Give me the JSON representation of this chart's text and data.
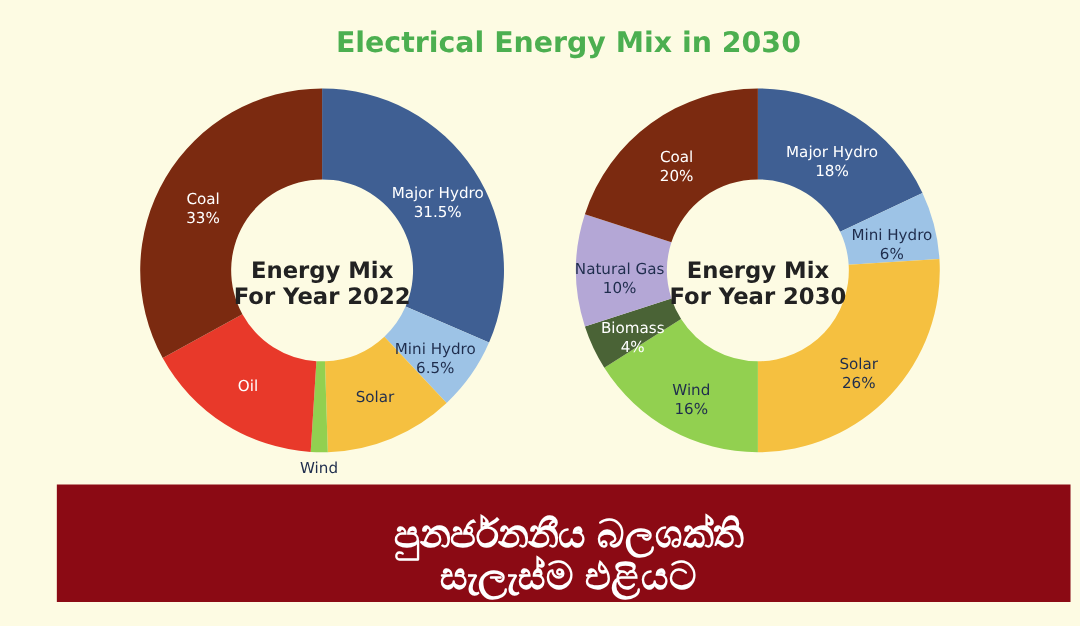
{
  "chart_data": [
    {
      "type": "donut",
      "title": "Energy Mix\nFor Year 2022",
      "categories": [
        "Major Hydro",
        "Mini Hydro",
        "Solar",
        "Wind",
        "Oil",
        "Coal"
      ],
      "values": [
        31.5,
        6.5,
        11.5,
        1.5,
        16,
        33
      ],
      "value_labels": [
        "31.5%",
        "6.5%",
        null,
        null,
        null,
        "33%"
      ],
      "colors": [
        "#3f5f93",
        "#9dc3e6",
        "#f5c040",
        "#92d050",
        "#e8392a",
        "#7b2a10"
      ],
      "legend": false,
      "annotations": [
        "Electrical Energy Mix in 2030",
        "පුනර්ජනනීය බලශක්ති සැලැස්ම එළියට"
      ]
    },
    {
      "type": "donut",
      "title": "Energy Mix\nFor Year 2030",
      "categories": [
        "Major Hydro",
        "Mini Hydro",
        "Solar",
        "Wind",
        "Biomass",
        "Natural Gas",
        "Coal"
      ],
      "values": [
        18,
        6,
        26,
        16,
        4,
        10,
        20
      ],
      "value_labels": [
        "18%",
        "6%",
        "26%",
        "16%",
        "4%",
        "10%",
        "20%"
      ],
      "colors": [
        "#3f5f93",
        "#9dc3e6",
        "#f5c040",
        "#92d050",
        "#4a6336",
        "#b4a7d6",
        "#7b2a10"
      ],
      "legend": false
    }
  ]
}
